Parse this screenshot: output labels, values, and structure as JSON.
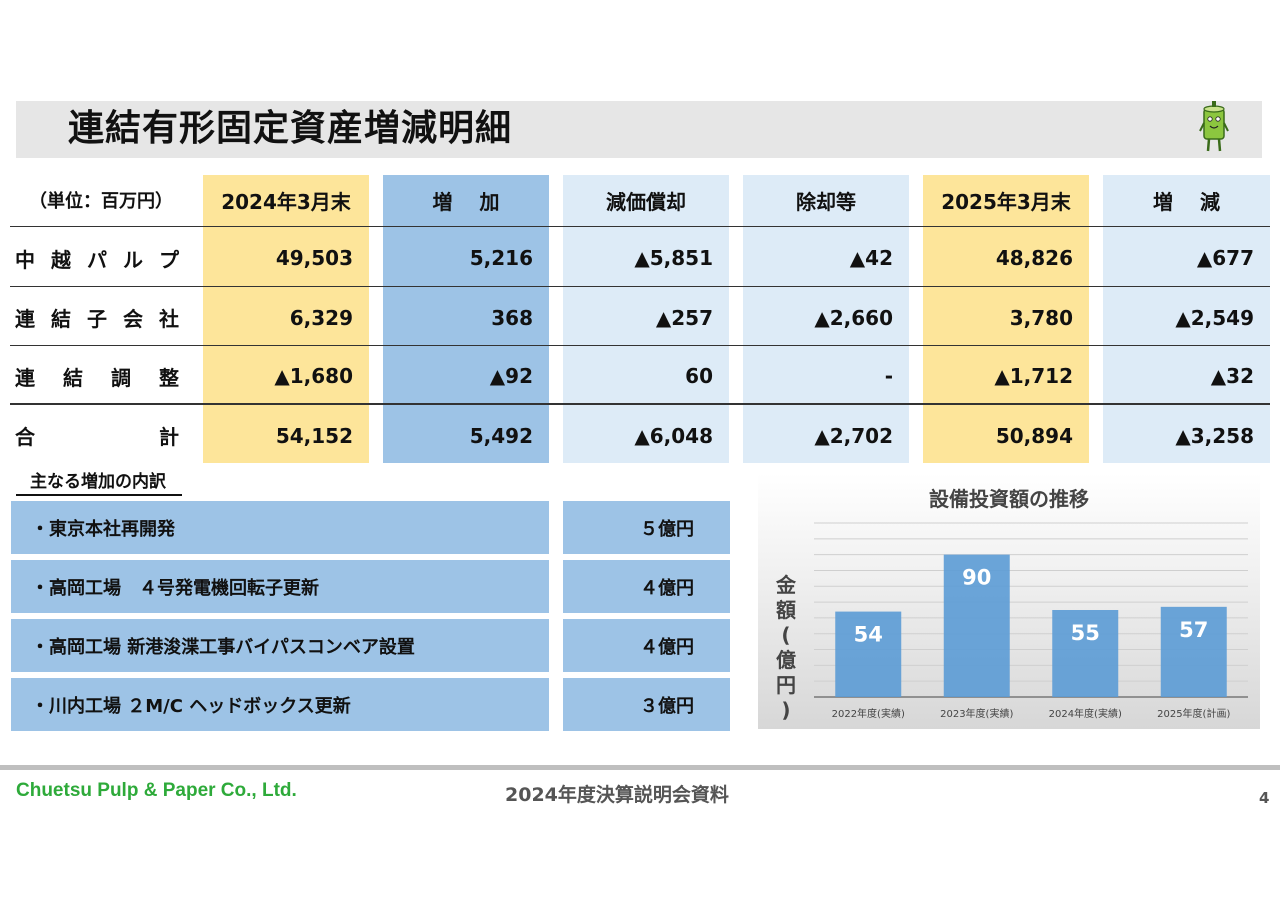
{
  "header": {
    "title": "連結有形固定資産増減明細"
  },
  "table": {
    "unit": "（単位：百万円）",
    "columns": [
      "2024年3月末",
      "増　 加",
      "減価償却",
      "除却等",
      "2025年3月末",
      "増　 減"
    ],
    "rows": [
      {
        "label": [
          "中",
          "越",
          "パ",
          "ル",
          "プ"
        ],
        "values": [
          "49,503",
          "5,216",
          "▲5,851",
          "▲42",
          "48,826",
          "▲677"
        ]
      },
      {
        "label": [
          "連",
          "結",
          "子",
          "会",
          "社"
        ],
        "values": [
          "6,329",
          "368",
          "▲257",
          "▲2,660",
          "3,780",
          "▲2,549"
        ]
      },
      {
        "label": [
          "連",
          "結",
          "調",
          "整"
        ],
        "values": [
          "▲1,680",
          "▲92",
          "60",
          "-",
          "▲1,712",
          "▲32"
        ]
      },
      {
        "label": [
          "合",
          "計"
        ],
        "values": [
          "54,152",
          "5,492",
          "▲6,048",
          "▲2,702",
          "50,894",
          "▲3,258"
        ]
      }
    ]
  },
  "increase_breakdown": {
    "title": "主なる増加の内訳",
    "items": [
      {
        "label": "・東京本社再開発",
        "amount": "５億円"
      },
      {
        "label": "・高岡工場　４号発電機回転子更新",
        "amount": "４億円"
      },
      {
        "label": "・高岡工場 新港浚渫工事バイパスコンベア設置",
        "amount": "４億円"
      },
      {
        "label": "・川内工場 ２M/C ヘッドボックス更新",
        "amount": "３億円"
      }
    ]
  },
  "chart_data": {
    "type": "bar",
    "title": "設備投資額の推移",
    "ylabel": "金額(億円)",
    "categories": [
      "2022年度(実績)",
      "2023年度(実績)",
      "2024年度(実績)",
      "2025年度(計画)"
    ],
    "values": [
      54,
      90,
      55,
      57
    ],
    "ylim": [
      0,
      110
    ],
    "grid": true,
    "bar_color": "#5b9bd5"
  },
  "footer": {
    "company": "Chuetsu Pulp & Paper Co., Ltd.",
    "document": "2024年度決算説明会資料",
    "page": "4"
  },
  "colors": {
    "yellow_col": "#fde59a",
    "blue_col": "#9dc3e6",
    "light_col": "#ddebf7",
    "company_green": "#2eaa3a"
  }
}
